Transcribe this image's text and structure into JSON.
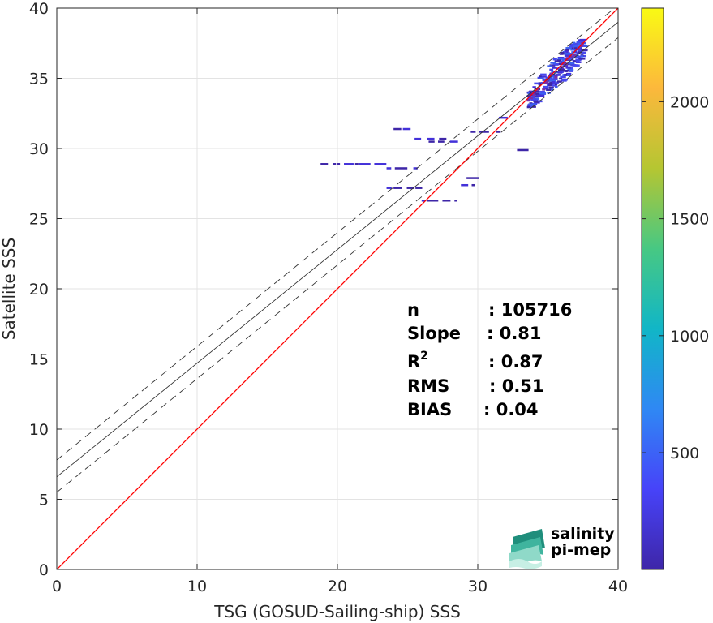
{
  "chart_data": {
    "type": "scatter",
    "subtype": "2d density scatter with regression lines and colorbar",
    "xlabel": "TSG (GOSUD-Sailing-ship) SSS",
    "ylabel": "Satellite SSS",
    "xlim": [
      0,
      40
    ],
    "ylim": [
      0,
      40
    ],
    "xticks": [
      0,
      10,
      20,
      30,
      40
    ],
    "yticks": [
      0,
      5,
      10,
      15,
      20,
      25,
      30,
      35,
      40
    ],
    "grid": true,
    "lines": {
      "identity": {
        "slope": 1,
        "intercept": 0,
        "color": "#ff0000"
      },
      "fit": {
        "slope": 0.81,
        "intercept": 6.6,
        "color": "#333333"
      },
      "fit_upper": {
        "slope": 0.81,
        "intercept": 7.8,
        "style": "dashed"
      },
      "fit_lower": {
        "slope": 0.81,
        "intercept": 5.5,
        "style": "dashed"
      }
    },
    "clusters": [
      {
        "x0": 33.5,
        "x1": 37.5,
        "y0": 33.5,
        "y1": 37.5
      },
      {
        "x0": 18.8,
        "x1": 23.0,
        "y": 28.9
      },
      {
        "x0": 23.5,
        "x1": 25.5,
        "y": 28.6
      },
      {
        "x0": 24.0,
        "x1": 25.0,
        "y": 31.4
      },
      {
        "x0": 25.5,
        "x1": 27.5,
        "y": 30.7
      },
      {
        "x0": 26.5,
        "x1": 28.5,
        "y": 30.5
      },
      {
        "x0": 23.5,
        "x1": 26.0,
        "y": 27.2
      },
      {
        "x0": 26.0,
        "x1": 28.5,
        "y": 26.3
      },
      {
        "x0": 28.8,
        "x1": 30.0,
        "y": 27.4
      },
      {
        "x0": 29.2,
        "x1": 29.8,
        "y": 27.9
      },
      {
        "x0": 29.5,
        "x1": 31.5,
        "y": 31.2
      },
      {
        "x0": 31.5,
        "x1": 32.5,
        "y": 32.2
      },
      {
        "x0": 32.8,
        "x1": 33.4,
        "y": 29.9
      }
    ],
    "stats": [
      {
        "label": "n",
        "value": ": 105716"
      },
      {
        "label": "Slope",
        "value": ": 0.81"
      },
      {
        "label": "R",
        "sup": "2",
        "value": ": 0.87"
      },
      {
        "label": "RMS",
        "value": ": 0.51"
      },
      {
        "label": "BIAS",
        "value": ": 0.04"
      }
    ],
    "colorbar": {
      "ticks": [
        500,
        1000,
        1500,
        2000
      ],
      "min": 1,
      "max": 2400,
      "colors": [
        "#3e26a8",
        "#4743f9",
        "#2f88f4",
        "#11b6c7",
        "#47c883",
        "#b5c632",
        "#fcb83c",
        "#f9fa14"
      ]
    }
  },
  "logo": {
    "line1": "salinity",
    "line2": "pi-mep",
    "color1": "#2aa694",
    "color2": "#1f6e63"
  }
}
